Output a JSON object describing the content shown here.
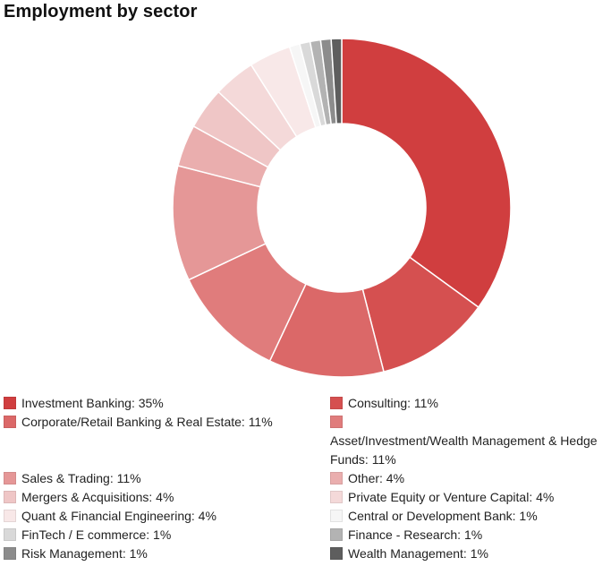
{
  "chart_data": {
    "type": "pie",
    "title": "Employment by sector",
    "donut": true,
    "legend_position": "bottom",
    "series": [
      {
        "name": "Investment Banking",
        "value": 35,
        "label": "Investment Banking: 35%",
        "color": "#d03e3f"
      },
      {
        "name": "Consulting",
        "value": 11,
        "label": "Consulting: 11%",
        "color": "#d55050"
      },
      {
        "name": "Corporate/Retail Banking & Real Estate",
        "value": 11,
        "label": "Corporate/Retail Banking & Real Estate: 11%",
        "color": "#db6868"
      },
      {
        "name": "Asset/Investment/Wealth Management & Hedge Funds",
        "value": 11,
        "label": "Asset/Investment/Wealth Management & Hedge Funds: 11%",
        "color": "#e07c7c"
      },
      {
        "name": "Sales & Trading",
        "value": 11,
        "label": "Sales & Trading: 11%",
        "color": "#e59797"
      },
      {
        "name": "Other",
        "value": 4,
        "label": "Other: 4%",
        "color": "#eaaeae"
      },
      {
        "name": "Mergers & Acquisitions",
        "value": 4,
        "label": "Mergers & Acquisitions: 4%",
        "color": "#efc6c6"
      },
      {
        "name": "Private Equity or Venture Capital",
        "value": 4,
        "label": "Private Equity or Venture Capital: 4%",
        "color": "#f4d9d9"
      },
      {
        "name": "Quant & Financial Engineering",
        "value": 4,
        "label": "Quant & Financial Engineering: 4%",
        "color": "#f8e8e8"
      },
      {
        "name": "Central or Development Bank",
        "value": 1,
        "label": "Central or Development Bank: 1%",
        "color": "#f6f6f6"
      },
      {
        "name": "FinTech / E commerce",
        "value": 1,
        "label": "FinTech / E commerce: 1%",
        "color": "#d9d9d9"
      },
      {
        "name": "Finance - Research",
        "value": 1,
        "label": "Finance - Research: 1%",
        "color": "#b3b3b3"
      },
      {
        "name": "Risk Management",
        "value": 1,
        "label": "Risk Management: 1%",
        "color": "#8c8c8c"
      },
      {
        "name": "Wealth Management",
        "value": 1,
        "label": "Wealth Management: 1%",
        "color": "#5e5e5e"
      }
    ]
  }
}
